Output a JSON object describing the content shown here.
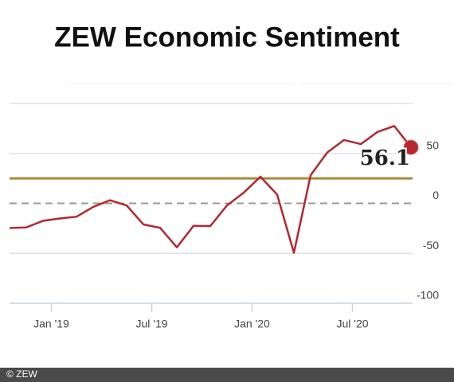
{
  "chart_data": {
    "type": "line",
    "title": "ZEW Economic Sentiment",
    "footer": "© ZEW",
    "x": [
      "2018-10",
      "2018-11",
      "2018-12",
      "2019-01",
      "2019-02",
      "2019-03",
      "2019-04",
      "2019-05",
      "2019-06",
      "2019-07",
      "2019-08",
      "2019-09",
      "2019-10",
      "2019-11",
      "2019-12",
      "2020-01",
      "2020-02",
      "2020-03",
      "2020-04",
      "2020-05",
      "2020-06",
      "2020-07",
      "2020-08",
      "2020-09",
      "2020-10"
    ],
    "series": [
      {
        "color": "#b5272d",
        "values": [
          -24.7,
          -24.1,
          -17.5,
          -15.1,
          -13.4,
          -3.6,
          3.1,
          -2.1,
          -21.1,
          -24.5,
          -44.1,
          -22.5,
          -22.8,
          -2.1,
          10.7,
          26.7,
          8.7,
          -49.5,
          28.2,
          51.0,
          63.4,
          59.3,
          71.5,
          77.4,
          56.1
        ]
      }
    ],
    "ylim": [
      -100,
      100
    ],
    "yticks": [
      -100,
      -50,
      0,
      50
    ],
    "xticks": [
      {
        "value": "2019-01",
        "label": "Jan '19"
      },
      {
        "value": "2019-07",
        "label": "Jul '19"
      },
      {
        "value": "2020-01",
        "label": "Jan '20"
      },
      {
        "value": "2020-07",
        "label": "Jul '20"
      }
    ],
    "reference_line": {
      "value": 25,
      "color": "#a68b3a"
    },
    "grid": true
  }
}
